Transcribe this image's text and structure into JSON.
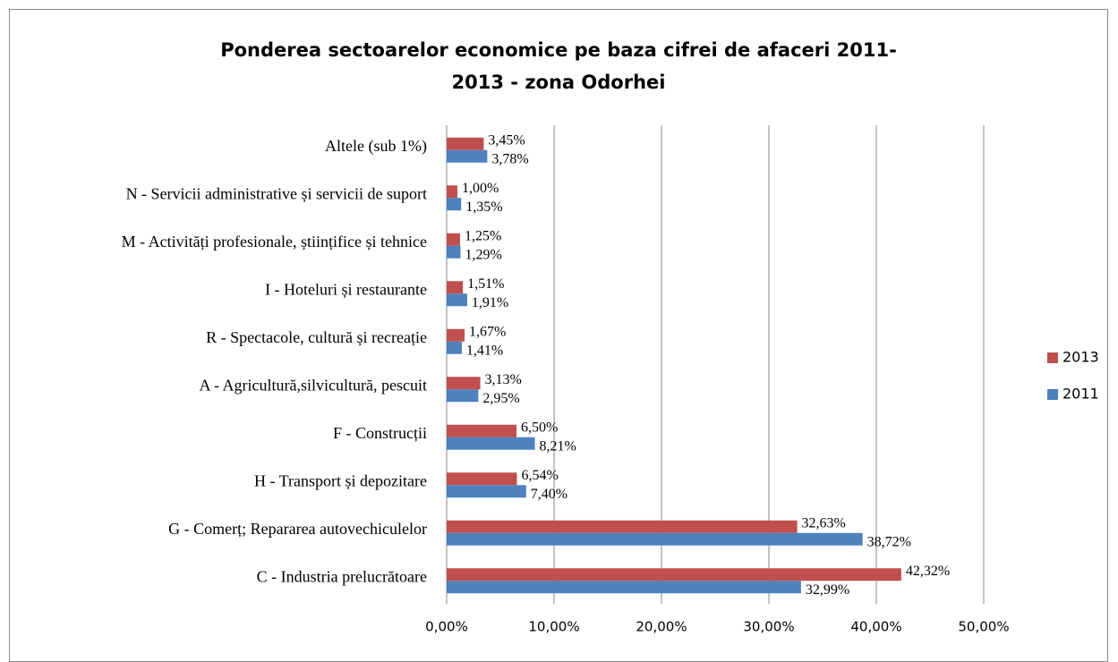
{
  "chart_data": {
    "type": "bar",
    "orientation": "horizontal",
    "title": "Ponderea sectoarelor economice pe baza cifrei de afaceri 2011-2013 - zona Odorhei",
    "categories": [
      "Altele (sub 1%)",
      "N - Servicii administrative și servicii de suport",
      "M - Activități profesionale, științifice și tehnice",
      "I - Hoteluri și restaurante",
      "R - Spectacole, cultură și recreație",
      "A - Agricultură,silvicultură, pescuit",
      "F - Construcții",
      "H - Transport și depozitare",
      "G - Comerț; Repararea autovechiculelor",
      "C - Industria prelucrătoare"
    ],
    "series": [
      {
        "name": "2013",
        "color": "#c0504d",
        "values": [
          3.45,
          1.0,
          1.25,
          1.51,
          1.67,
          3.13,
          6.5,
          6.54,
          32.63,
          42.32
        ],
        "value_labels": [
          "3,45%",
          "1,00%",
          "1,25%",
          "1,51%",
          "1,67%",
          "3,13%",
          "6,50%",
          "6,54%",
          "32,63%",
          "42,32%"
        ]
      },
      {
        "name": "2011",
        "color": "#4f81bd",
        "values": [
          3.78,
          1.35,
          1.29,
          1.91,
          1.41,
          2.95,
          8.21,
          7.4,
          38.72,
          32.99
        ],
        "value_labels": [
          "3,78%",
          "1,35%",
          "1,29%",
          "1,91%",
          "1,41%",
          "2,95%",
          "8,21%",
          "7,40%",
          "38,72%",
          "32,99%"
        ]
      }
    ],
    "xlim": [
      0,
      50
    ],
    "xticks": [
      {
        "value": 0,
        "label": "0,00%"
      },
      {
        "value": 10,
        "label": "10,00%"
      },
      {
        "value": 20,
        "label": "20,00%"
      },
      {
        "value": 30,
        "label": "30,00%"
      },
      {
        "value": 40,
        "label": "40,00%"
      },
      {
        "value": 50,
        "label": "50,00%"
      }
    ],
    "grid": true,
    "legend": "right"
  }
}
